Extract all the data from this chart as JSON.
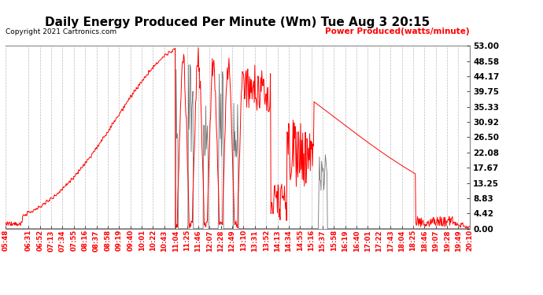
{
  "title": "Daily Energy Produced Per Minute (Wm) Tue Aug 3 20:15",
  "copyright": "Copyright 2021 Cartronics.com",
  "legend_label": "Power Produced(watts/minute)",
  "ymin": 0.0,
  "ymax": 53.0,
  "yticks": [
    0.0,
    4.42,
    8.83,
    13.25,
    17.67,
    22.08,
    26.5,
    30.92,
    35.33,
    39.75,
    44.17,
    48.58,
    53.0
  ],
  "line_color": "#ff0000",
  "gray_color": "#666666",
  "background_color": "#ffffff",
  "grid_color": "#bbbbbb",
  "title_color": "#000000",
  "copyright_color": "#000000",
  "legend_color": "#ff0000",
  "xtick_labels": [
    "05:48",
    "06:31",
    "06:52",
    "07:13",
    "07:34",
    "07:55",
    "08:16",
    "08:37",
    "08:58",
    "09:19",
    "09:40",
    "10:01",
    "10:22",
    "10:43",
    "11:04",
    "11:25",
    "11:46",
    "12:07",
    "12:28",
    "12:49",
    "13:10",
    "13:31",
    "13:52",
    "14:13",
    "14:34",
    "14:55",
    "15:16",
    "15:37",
    "15:58",
    "16:19",
    "16:40",
    "17:01",
    "17:22",
    "17:43",
    "18:04",
    "18:25",
    "18:46",
    "19:07",
    "19:28",
    "19:49",
    "20:10"
  ]
}
